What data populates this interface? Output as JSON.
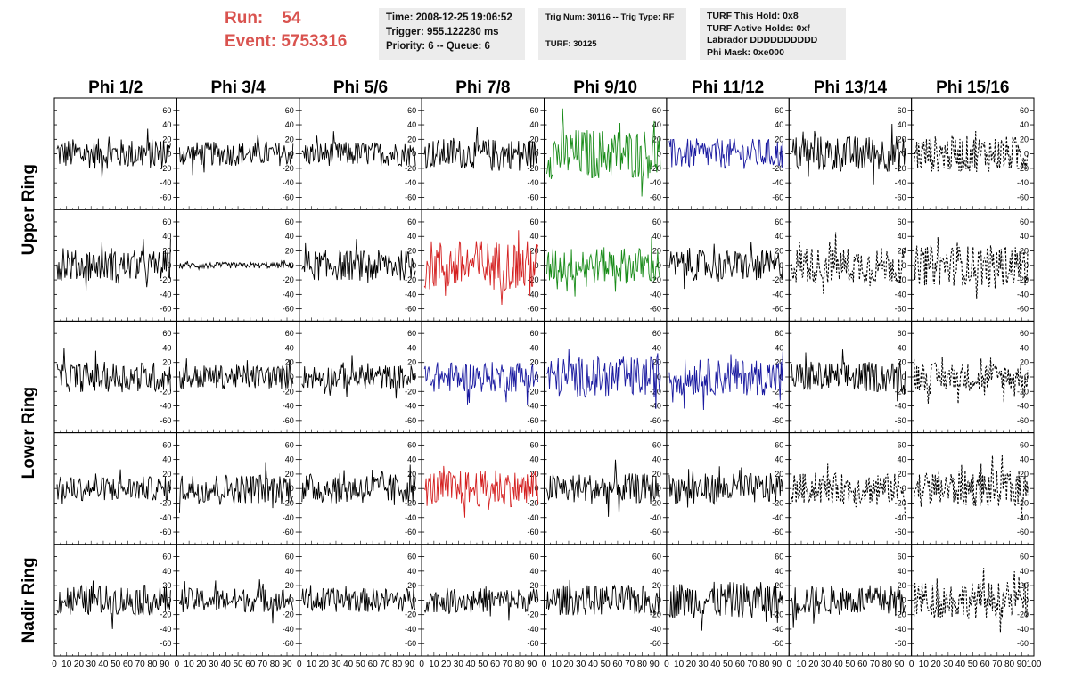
{
  "header": {
    "run_label": "Run:",
    "run_value": "54",
    "event_label": "Event:",
    "event_value": "5753316",
    "time_box": [
      "Time: 2008-12-25 19:06:52",
      "Trigger: 955.122280 ms",
      "Priority: 6 -- Queue: 6"
    ],
    "trig_box": [
      "Trig Num: 30116 -- Trig Type: RF",
      "",
      "TURF: 30125"
    ],
    "turf_box": [
      "TURF This Hold: 0x8",
      "TURF Active Holds: 0xf",
      "Labrador DDDDDDDDDD",
      "Phi Mask: 0xe000"
    ]
  },
  "columns": [
    "Phi 1/2",
    "Phi 3/4",
    "Phi 5/6",
    "Phi 7/8",
    "Phi 9/10",
    "Phi 11/12",
    "Phi 13/14",
    "Phi 15/16"
  ],
  "rows": [
    {
      "label": "Upper Ring",
      "span": 2
    },
    {
      "label": "Lower Ring",
      "span": 2
    },
    {
      "label": "Nadir Ring",
      "span": 1
    }
  ],
  "colors": {
    "black": "#000000",
    "green": "#1a8c1a",
    "blue": "#1a1aa0",
    "red": "#d42020",
    "accent": "#d9534f",
    "box_bg": "#ececec"
  },
  "chart_data": {
    "type": "line",
    "panel_grid": {
      "rows": 5,
      "cols": 8
    },
    "y_ticks": [
      60,
      40,
      20,
      0,
      -20,
      -40,
      -60
    ],
    "ylim": [
      -72,
      72
    ],
    "x_ticks": [
      0,
      10,
      20,
      30,
      40,
      50,
      60,
      70,
      80,
      90,
      100
    ],
    "xlim": [
      0,
      100
    ],
    "trace_styles": [
      [
        "black",
        "black",
        "black",
        "black",
        "green",
        "blue",
        "black",
        "dashed"
      ],
      [
        "black",
        "black",
        "black",
        "red",
        "green",
        "black",
        "dashed",
        "dashed"
      ],
      [
        "black",
        "black",
        "black",
        "blue",
        "blue",
        "blue",
        "black",
        "dashed"
      ],
      [
        "black",
        "black",
        "black",
        "red",
        "black",
        "black",
        "dashed",
        "dashed"
      ],
      [
        "black",
        "black",
        "black",
        "black",
        "black",
        "black",
        "black",
        "dashed"
      ]
    ],
    "trace_amplitude": [
      [
        15,
        12,
        12,
        15,
        25,
        15,
        18,
        18
      ],
      [
        15,
        3,
        15,
        25,
        18,
        15,
        18,
        20
      ],
      [
        15,
        12,
        12,
        15,
        20,
        18,
        15,
        14
      ],
      [
        12,
        15,
        15,
        18,
        15,
        15,
        15,
        18
      ],
      [
        15,
        12,
        12,
        12,
        15,
        18,
        15,
        18
      ]
    ]
  }
}
